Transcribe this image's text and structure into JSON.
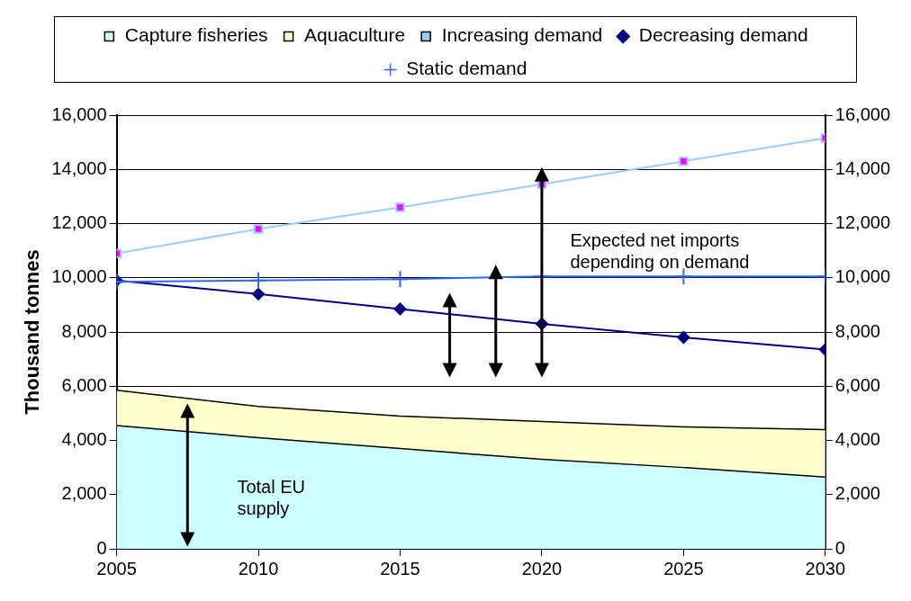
{
  "chart_data": {
    "type": "area",
    "x": [
      2005,
      2010,
      2015,
      2020,
      2025,
      2030
    ],
    "series": [
      {
        "name": "Capture fisheries",
        "color": "#ccffff",
        "values": [
          4550,
          4100,
          3700,
          3300,
          3000,
          2650
        ]
      },
      {
        "name": "Aquaculture",
        "color": "#ffffcc",
        "values": [
          1300,
          1150,
          1200,
          1400,
          1500,
          1750
        ]
      },
      {
        "name": "Increasing demand",
        "type": "line",
        "color": "#99ccff",
        "marker": "square",
        "values": [
          10900,
          11800,
          12600,
          13450,
          14300,
          15150
        ]
      },
      {
        "name": "Decreasing demand",
        "type": "line",
        "color": "#000080",
        "marker": "diamond",
        "values": [
          9900,
          9400,
          8850,
          8300,
          7800,
          7350
        ]
      },
      {
        "name": "Static demand",
        "type": "line",
        "color": "#3366ff",
        "marker": "cross",
        "values": [
          9850,
          9900,
          9950,
          10050,
          10050,
          10050
        ]
      }
    ],
    "stacked": true,
    "ylabel": "Thousand tonnes",
    "xlim": [
      2005,
      2030
    ],
    "xticks": [
      2005,
      2010,
      2015,
      2020,
      2025,
      2030
    ],
    "ylim": [
      0,
      16000
    ],
    "yticks": [
      {
        "value": 0,
        "label": "0"
      },
      {
        "value": 2000,
        "label": "2,000"
      },
      {
        "value": 4000,
        "label": "4,000"
      },
      {
        "value": 6000,
        "label": "6,000"
      },
      {
        "value": 8000,
        "label": "8,000"
      },
      {
        "value": 10000,
        "label": "10,000"
      },
      {
        "value": 12000,
        "label": "12,000"
      },
      {
        "value": 14000,
        "label": "14,000"
      },
      {
        "value": 16000,
        "label": "16,000"
      }
    ],
    "y2lim": [
      0,
      16000
    ],
    "y2ticks": [
      {
        "value": 0,
        "label": "0"
      },
      {
        "value": 2000,
        "label": "2,000"
      },
      {
        "value": 4000,
        "label": "4,000"
      },
      {
        "value": 6000,
        "label": "6,000"
      },
      {
        "value": 8000,
        "label": "8,000"
      },
      {
        "value": 10000,
        "label": "10,000"
      },
      {
        "value": 12000,
        "label": "12,000"
      },
      {
        "value": 14000,
        "label": "14,000"
      },
      {
        "value": 16000,
        "label": "16,000"
      }
    ],
    "grid": "y",
    "legend": "top",
    "annotations": [
      "Expected net imports depending on demand",
      "Total EU supply"
    ]
  }
}
